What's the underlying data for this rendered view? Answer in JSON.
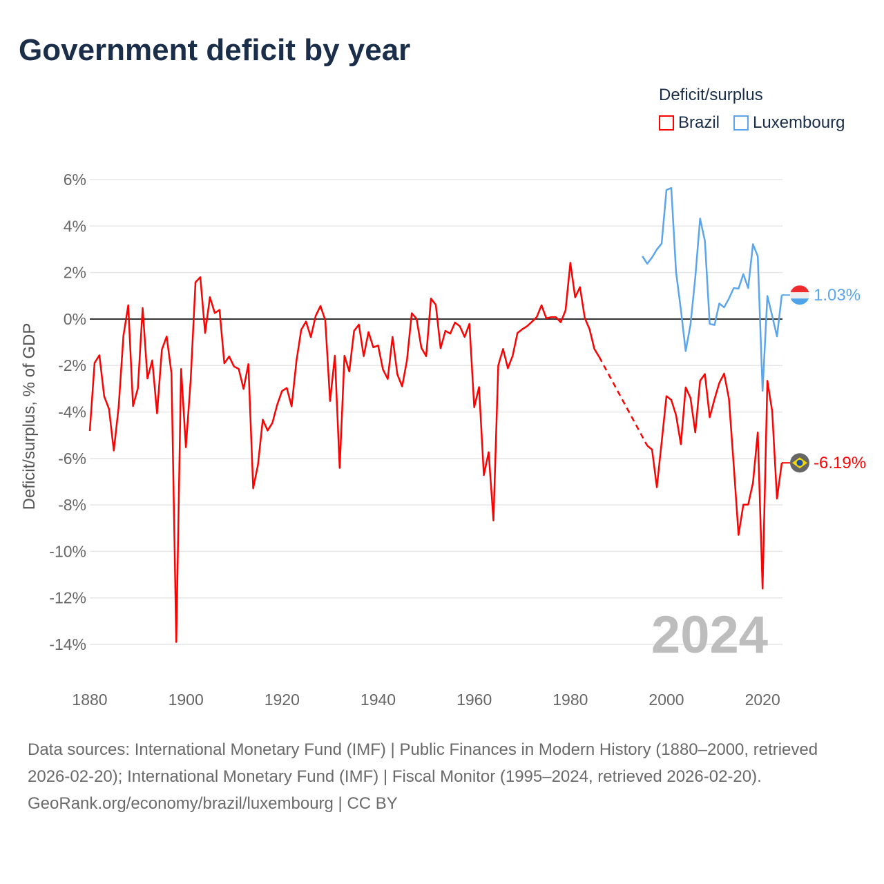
{
  "chart_data": {
    "type": "line",
    "title": "Government deficit by year",
    "xlabel": "",
    "ylabel": "Deficit/surplus, % of GDP",
    "xlim": [
      1880,
      2024
    ],
    "ylim": [
      -14,
      6
    ],
    "xticks": [
      1880,
      1900,
      1920,
      1940,
      1960,
      1980,
      2000,
      2020
    ],
    "yticks": [
      6,
      4,
      2,
      0,
      -2,
      -4,
      -6,
      -8,
      -10,
      -12,
      -14
    ],
    "ytick_suffix": "%",
    "grid": true,
    "legend_title": "Deficit/surplus",
    "legend_position": "top-right",
    "year_annotation": "2024",
    "series": [
      {
        "name": "Brazil",
        "color": "#ff0000",
        "end_label": "-6.19%",
        "flag_icon": "brazil-flag",
        "start_year": 1880,
        "values": [
          -4.82,
          -1.89,
          -1.56,
          -3.33,
          -3.87,
          -5.66,
          -3.8,
          -0.73,
          0.59,
          -3.75,
          -2.99,
          0.47,
          -2.56,
          -1.78,
          -4.06,
          -1.32,
          -0.75,
          -2.34,
          -13.9,
          -2.15,
          -5.52,
          -2.6,
          1.58,
          1.8,
          -0.6,
          0.94,
          0.26,
          0.39,
          -1.91,
          -1.61,
          -2.04,
          -2.15,
          -3.01,
          -1.94,
          -7.29,
          -6.27,
          -4.33,
          -4.8,
          -4.47,
          -3.69,
          -3.1,
          -2.97,
          -3.76,
          -1.81,
          -0.46,
          -0.11,
          -0.78,
          0.13,
          0.56,
          -0.05,
          -3.53,
          -1.58,
          -6.41,
          -1.58,
          -2.26,
          -0.51,
          -0.24,
          -1.6,
          -0.56,
          -1.22,
          -1.14,
          -2.17,
          -2.58,
          -0.77,
          -2.38,
          -2.9,
          -1.78,
          0.25,
          0.01,
          -1.24,
          -1.6,
          0.88,
          0.61,
          -1.26,
          -0.51,
          -0.63,
          -0.15,
          -0.31,
          -0.77,
          -0.21,
          -3.8,
          -2.93,
          -6.72,
          -5.73,
          -8.67,
          -2.0,
          -1.29,
          -2.12,
          -1.58,
          -0.6,
          -0.44,
          -0.31,
          -0.12,
          0.08,
          0.59,
          0.03,
          0.08,
          0.08,
          -0.14,
          0.37,
          2.42,
          0.93,
          1.37,
          0.05,
          -0.44,
          -1.29,
          -1.63,
          null,
          null,
          null,
          null,
          null,
          null,
          null,
          null,
          null,
          -5.45,
          -5.62,
          -7.24,
          -5.3,
          -3.32,
          -3.48,
          -4.14,
          -5.39,
          -2.94,
          -3.4,
          -4.88,
          -2.66,
          -2.37,
          -4.23,
          -3.45,
          -2.75,
          -2.35,
          -3.43,
          -6.3,
          -9.29,
          -7.99,
          -7.99,
          -7.05,
          -4.88,
          -11.6,
          -2.66,
          -3.97,
          -7.73,
          -6.19
        ]
      },
      {
        "name": "Luxembourg",
        "color": "#5aa5ec",
        "end_label": "1.03%",
        "flag_icon": "luxembourg-flag",
        "start_year": 1995,
        "values": [
          2.7,
          2.38,
          2.65,
          2.99,
          3.25,
          5.55,
          5.64,
          2.02,
          0.4,
          -1.38,
          -0.24,
          1.79,
          4.32,
          3.36,
          -0.21,
          -0.26,
          0.67,
          0.5,
          0.88,
          1.33,
          1.31,
          1.93,
          1.33,
          3.22,
          2.7,
          -3.09,
          0.99,
          0.14,
          -0.75,
          1.03
        ]
      }
    ]
  },
  "footer": {
    "sources": "Data sources: International Monetary Fund (IMF) | Public Finances in Modern History (1880–2000, retrieved 2026-02-20); International Monetary Fund (IMF) | Fiscal Monitor (1995–2024, retrieved 2026-02-20).",
    "attribution": "GeoRank.org/economy/brazil/luxembourg | CC BY"
  }
}
